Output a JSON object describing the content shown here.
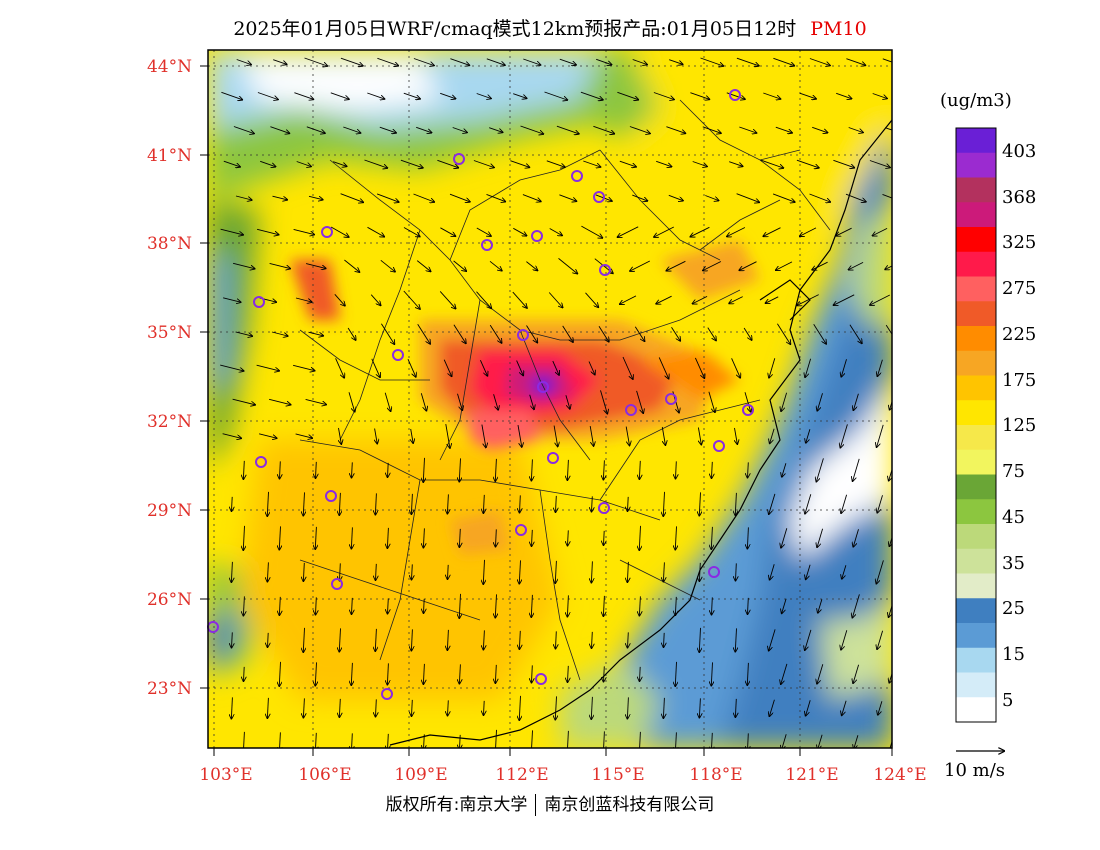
{
  "title": {
    "main": "2025年01月05日WRF/cmaq模式12km预报产品:01月05日12时",
    "pollutant": "PM10"
  },
  "axes": {
    "lat_labels": [
      "44°N",
      "41°N",
      "38°N",
      "35°N",
      "32°N",
      "29°N",
      "26°N",
      "23°N"
    ],
    "lon_labels": [
      "103°E",
      "106°E",
      "109°E",
      "112°E",
      "115°E",
      "118°E",
      "121°E",
      "124°E"
    ]
  },
  "legend": {
    "unit": "(ug/m3)",
    "levels": [
      "403",
      "368",
      "325",
      "275",
      "225",
      "175",
      "125",
      "75",
      "45",
      "35",
      "25",
      "15",
      "5"
    ],
    "colors": [
      "#6a1fd6",
      "#9b2bd0",
      "#b3315e",
      "#cc1a7a",
      "#ff0000",
      "#ff1a4a",
      "#ff6060",
      "#f05a28",
      "#ff8c00",
      "#f7a623",
      "#ffc400",
      "#ffe600",
      "#f6e84a",
      "#f2f55e",
      "#6aa636",
      "#8cc63f",
      "#bcd97a",
      "#cde29a",
      "#e2ecc8",
      "#3f7fc0",
      "#5b9bd5",
      "#a8d8f0",
      "#d4ecf8",
      "#ffffff"
    ]
  },
  "wind_reference": {
    "label": "10 m/s"
  },
  "footer": {
    "left": "版权所有:南京大学",
    "right": "南京创蓝科技有限公司"
  }
}
